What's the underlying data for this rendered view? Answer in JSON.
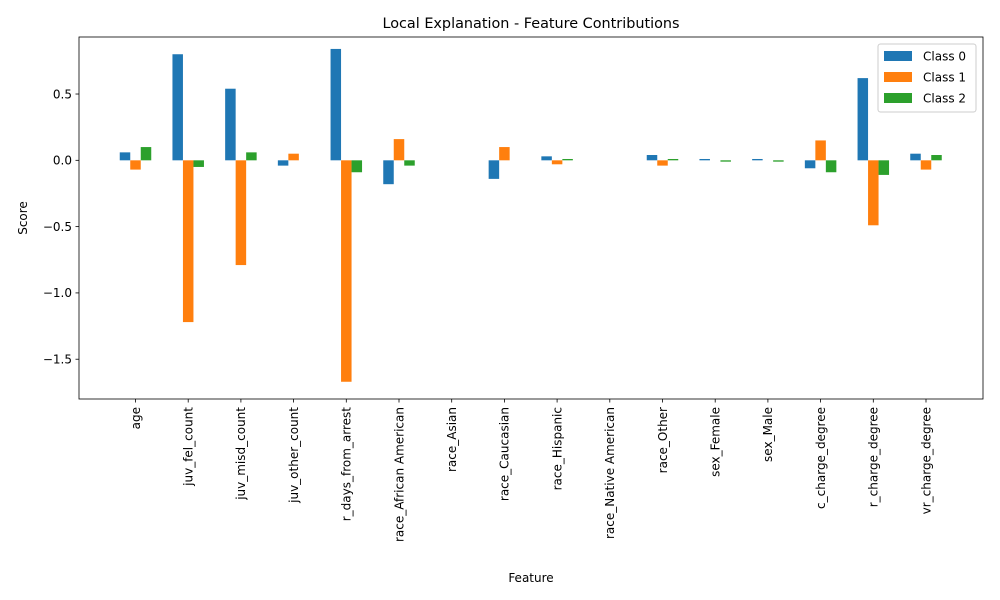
{
  "chart_data": {
    "type": "bar",
    "title": "Local Explanation - Feature Contributions",
    "xlabel": "Feature",
    "ylabel": "Score",
    "ylim": [
      -1.8,
      0.93
    ],
    "yticks": [
      -1.5,
      -1.0,
      -0.5,
      0.0,
      0.5
    ],
    "ytick_labels": [
      "−1.5",
      "−1.0",
      "−0.5",
      "0.0",
      "0.5"
    ],
    "legend_position": "top-right",
    "categories": [
      "age",
      "juv_fel_count",
      "juv_misd_count",
      "juv_other_count",
      "r_days_from_arrest",
      "race_African American",
      "race_Asian",
      "race_Caucasian",
      "race_Hispanic",
      "race_Native American",
      "race_Other",
      "sex_Female",
      "sex_Male",
      "c_charge_degree",
      "r_charge_degree",
      "vr_charge_degree"
    ],
    "series": [
      {
        "name": "Class 0",
        "color": "#1f77b4",
        "values": [
          0.06,
          0.8,
          0.54,
          -0.04,
          0.84,
          -0.18,
          0.0,
          -0.14,
          0.03,
          0.0,
          0.04,
          0.01,
          0.01,
          -0.06,
          0.62,
          0.05
        ]
      },
      {
        "name": "Class 1",
        "color": "#ff7f0e",
        "values": [
          -0.07,
          -1.22,
          -0.79,
          0.05,
          -1.67,
          0.16,
          0.0,
          0.1,
          -0.03,
          0.0,
          -0.04,
          0.0,
          0.0,
          0.15,
          -0.49,
          -0.07
        ]
      },
      {
        "name": "Class 2",
        "color": "#2ca02c",
        "values": [
          0.1,
          -0.05,
          0.06,
          0.0,
          -0.09,
          -0.04,
          0.0,
          0.0,
          0.01,
          0.0,
          0.01,
          -0.01,
          -0.01,
          -0.09,
          -0.11,
          0.04
        ]
      }
    ]
  }
}
